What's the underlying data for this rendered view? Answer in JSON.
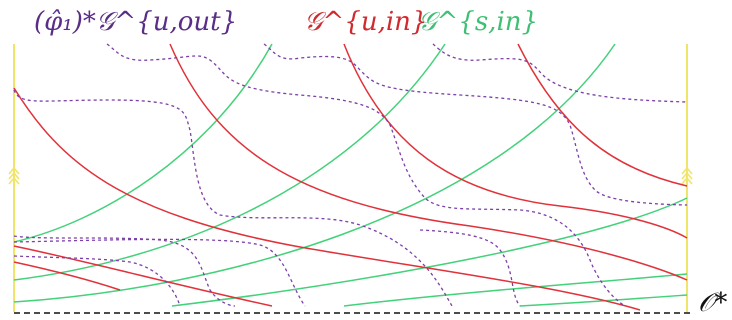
{
  "labels": {
    "pushforward_unstable_outgoing": "(φ̂₁)*𝒢^{u,out}",
    "unstable_incoming": "𝒢^{u,in}",
    "stable_incoming": "𝒢^{s,in}",
    "orbit": "𝒪*"
  },
  "colors": {
    "unstable_incoming": "#e0323a",
    "stable_incoming": "#43d17a",
    "pushforward_unstable_outgoing": "#7d3fa8",
    "boundary": "#f1e46a",
    "orbit": "#111111",
    "label_purple": "#5a2e86",
    "label_red": "#d12a2e",
    "label_green": "#3fbf73"
  }
}
